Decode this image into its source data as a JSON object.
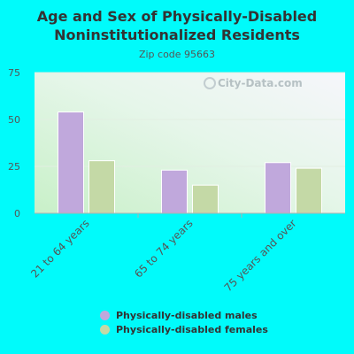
{
  "chart_data": {
    "type": "bar",
    "title": "Age and Sex of Physically-Disabled Noninstitutionalized Residents",
    "subtitle": "Zip code 95663",
    "categories": [
      "21 to 64 years",
      "65 to 74 years",
      "75 years and over"
    ],
    "series": [
      {
        "name": "Physically-disabled males",
        "values": [
          54,
          23,
          27
        ],
        "color": "#c0a8dc"
      },
      {
        "name": "Physically-disabled females",
        "values": [
          28,
          15,
          24
        ],
        "color": "#c4d9a6"
      }
    ],
    "ylim": [
      0,
      75
    ],
    "yticks": [
      "0",
      "25",
      "50",
      "75"
    ],
    "xlabel": "",
    "ylabel": "",
    "grid": true,
    "legend_position": "bottom"
  },
  "watermark": "City-Data.com"
}
